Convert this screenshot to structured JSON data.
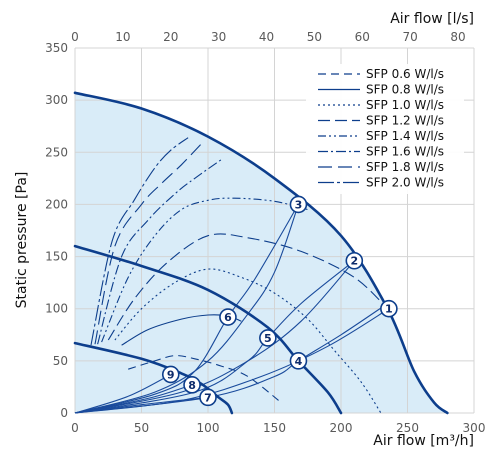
{
  "chart_data": {
    "type": "line",
    "title": "",
    "xlabel": "Air flow [m³/h]",
    "x2label": "Air flow [l/s]",
    "ylabel": "Static pressure [Pa]",
    "xlim": [
      0,
      300
    ],
    "x2lim": [
      0,
      83.33
    ],
    "ylim": [
      0,
      350
    ],
    "x_ticks": [
      "0",
      "50",
      "100",
      "150",
      "200",
      "250",
      "300"
    ],
    "x2_ticks": [
      "0",
      "10",
      "20",
      "30",
      "40",
      "50",
      "60",
      "70",
      "80"
    ],
    "y_ticks": [
      "0",
      "50",
      "100",
      "150",
      "200",
      "250",
      "300",
      "350"
    ],
    "grid": true,
    "legend_position": "top-right",
    "colors": {
      "fan_curve": "#0d3e8c",
      "duct_curve": "#1a4b9c",
      "fill": "#d9ecf8",
      "grid": "#d4d4d4",
      "marker_fill": "#ffffff"
    },
    "fan_curves": [
      {
        "points": [
          [
            0,
            307
          ],
          [
            50,
            292
          ],
          [
            100,
            265
          ],
          [
            150,
            225
          ],
          [
            200,
            170
          ],
          [
            235,
            100
          ],
          [
            255,
            40
          ],
          [
            270,
            10
          ],
          [
            280,
            0
          ]
        ]
      },
      {
        "points": [
          [
            0,
            160
          ],
          [
            50,
            141
          ],
          [
            100,
            118
          ],
          [
            145,
            82
          ],
          [
            168,
            50
          ],
          [
            190,
            20
          ],
          [
            200,
            0
          ]
        ]
      },
      {
        "points": [
          [
            0,
            67
          ],
          [
            50,
            52
          ],
          [
            80,
            38
          ],
          [
            95,
            28
          ],
          [
            108,
            15
          ],
          [
            115,
            8
          ],
          [
            118,
            0
          ]
        ]
      }
    ],
    "series": [
      {
        "name": "SFP 0.6 W/l/s",
        "dash": "8,5",
        "points": [
          [
            40,
            42
          ],
          [
            60,
            50
          ],
          [
            75,
            55
          ],
          [
            90,
            52
          ],
          [
            110,
            45
          ],
          [
            130,
            35
          ],
          [
            155,
            10
          ]
        ]
      },
      {
        "name": "SFP 0.8 W/l/s",
        "dash": "",
        "points": [
          [
            35,
            65
          ],
          [
            55,
            80
          ],
          [
            80,
            90
          ],
          [
            100,
            94
          ],
          [
            115,
            93
          ],
          [
            125,
            88
          ]
        ]
      },
      {
        "name": "SFP 1.0 W/l/s",
        "dash": "2,3",
        "points": [
          [
            30,
            70
          ],
          [
            50,
            100
          ],
          [
            75,
            125
          ],
          [
            100,
            138
          ],
          [
            125,
            130
          ],
          [
            150,
            115
          ],
          [
            175,
            90
          ],
          [
            195,
            60
          ],
          [
            215,
            30
          ],
          [
            230,
            0
          ]
        ]
      },
      {
        "name": "SFP 1.2 W/l/s",
        "dash": "12,5",
        "points": [
          [
            25,
            70
          ],
          [
            45,
            110
          ],
          [
            70,
            145
          ],
          [
            100,
            170
          ],
          [
            130,
            168
          ],
          [
            170,
            155
          ],
          [
            210,
            130
          ],
          [
            235,
            100
          ]
        ]
      },
      {
        "name": "SFP 1.4 W/l/s",
        "dash": "8,3,2,3,2,3",
        "points": [
          [
            20,
            68
          ],
          [
            40,
            130
          ],
          [
            60,
            170
          ],
          [
            80,
            195
          ],
          [
            100,
            204
          ],
          [
            120,
            206
          ],
          [
            150,
            203
          ],
          [
            175,
            195
          ]
        ]
      },
      {
        "name": "SFP 1.6 W/l/s",
        "dash": "10,3,2,3",
        "points": [
          [
            17,
            66
          ],
          [
            35,
            150
          ],
          [
            55,
            185
          ],
          [
            75,
            210
          ],
          [
            90,
            225
          ],
          [
            110,
            243
          ]
        ]
      },
      {
        "name": "SFP 1.8 W/l/s",
        "dash": "14,6",
        "points": [
          [
            15,
            66
          ],
          [
            30,
            160
          ],
          [
            50,
            200
          ],
          [
            65,
            220
          ],
          [
            80,
            238
          ],
          [
            95,
            258
          ]
        ]
      },
      {
        "name": "SFP 2.0 W/l/s",
        "dash": "16,3,3,3",
        "points": [
          [
            12,
            65
          ],
          [
            28,
            165
          ],
          [
            45,
            205
          ],
          [
            60,
            235
          ],
          [
            72,
            252
          ],
          [
            85,
            264
          ]
        ]
      }
    ],
    "duct_curves": [
      {
        "label": "1",
        "points": [
          [
            0,
            0
          ],
          [
            80,
            12
          ],
          [
            140,
            35
          ],
          [
            190,
            64
          ],
          [
            236,
            100
          ]
        ]
      },
      {
        "label": "2",
        "points": [
          [
            0,
            0
          ],
          [
            80,
            20
          ],
          [
            130,
            50
          ],
          [
            170,
            88
          ],
          [
            210,
            146
          ]
        ]
      },
      {
        "label": "3",
        "points": [
          [
            0,
            0
          ],
          [
            60,
            20
          ],
          [
            100,
            50
          ],
          [
            130,
            95
          ],
          [
            150,
            135
          ],
          [
            168,
            200
          ]
        ]
      },
      {
        "label": "4",
        "points": [
          [
            0,
            0
          ],
          [
            100,
            15
          ],
          [
            150,
            35
          ],
          [
            168,
            50
          ],
          [
            200,
            75
          ],
          [
            235,
            105
          ]
        ]
      },
      {
        "label": "5",
        "points": [
          [
            0,
            0
          ],
          [
            90,
            20
          ],
          [
            130,
            50
          ],
          [
            145,
            72
          ],
          [
            170,
            105
          ],
          [
            210,
            146
          ]
        ]
      },
      {
        "label": "6",
        "points": [
          [
            0,
            0
          ],
          [
            60,
            18
          ],
          [
            90,
            40
          ],
          [
            115,
            92
          ],
          [
            135,
            128
          ],
          [
            168,
            200
          ]
        ]
      },
      {
        "label": "7",
        "points": [
          [
            0,
            0
          ],
          [
            50,
            8
          ],
          [
            100,
            15
          ]
        ]
      },
      {
        "label": "8",
        "points": [
          [
            0,
            0
          ],
          [
            55,
            14
          ],
          [
            88,
            27
          ]
        ]
      },
      {
        "label": "9",
        "points": [
          [
            0,
            0
          ],
          [
            40,
            16
          ],
          [
            72,
            37
          ]
        ]
      }
    ],
    "markers": [
      {
        "label": "1",
        "x": 236,
        "y": 100
      },
      {
        "label": "2",
        "x": 210,
        "y": 146
      },
      {
        "label": "3",
        "x": 168,
        "y": 200
      },
      {
        "label": "4",
        "x": 168,
        "y": 50
      },
      {
        "label": "5",
        "x": 145,
        "y": 72
      },
      {
        "label": "6",
        "x": 115,
        "y": 92
      },
      {
        "label": "7",
        "x": 100,
        "y": 15
      },
      {
        "label": "8",
        "x": 88,
        "y": 27
      },
      {
        "label": "9",
        "x": 72,
        "y": 37
      }
    ]
  }
}
